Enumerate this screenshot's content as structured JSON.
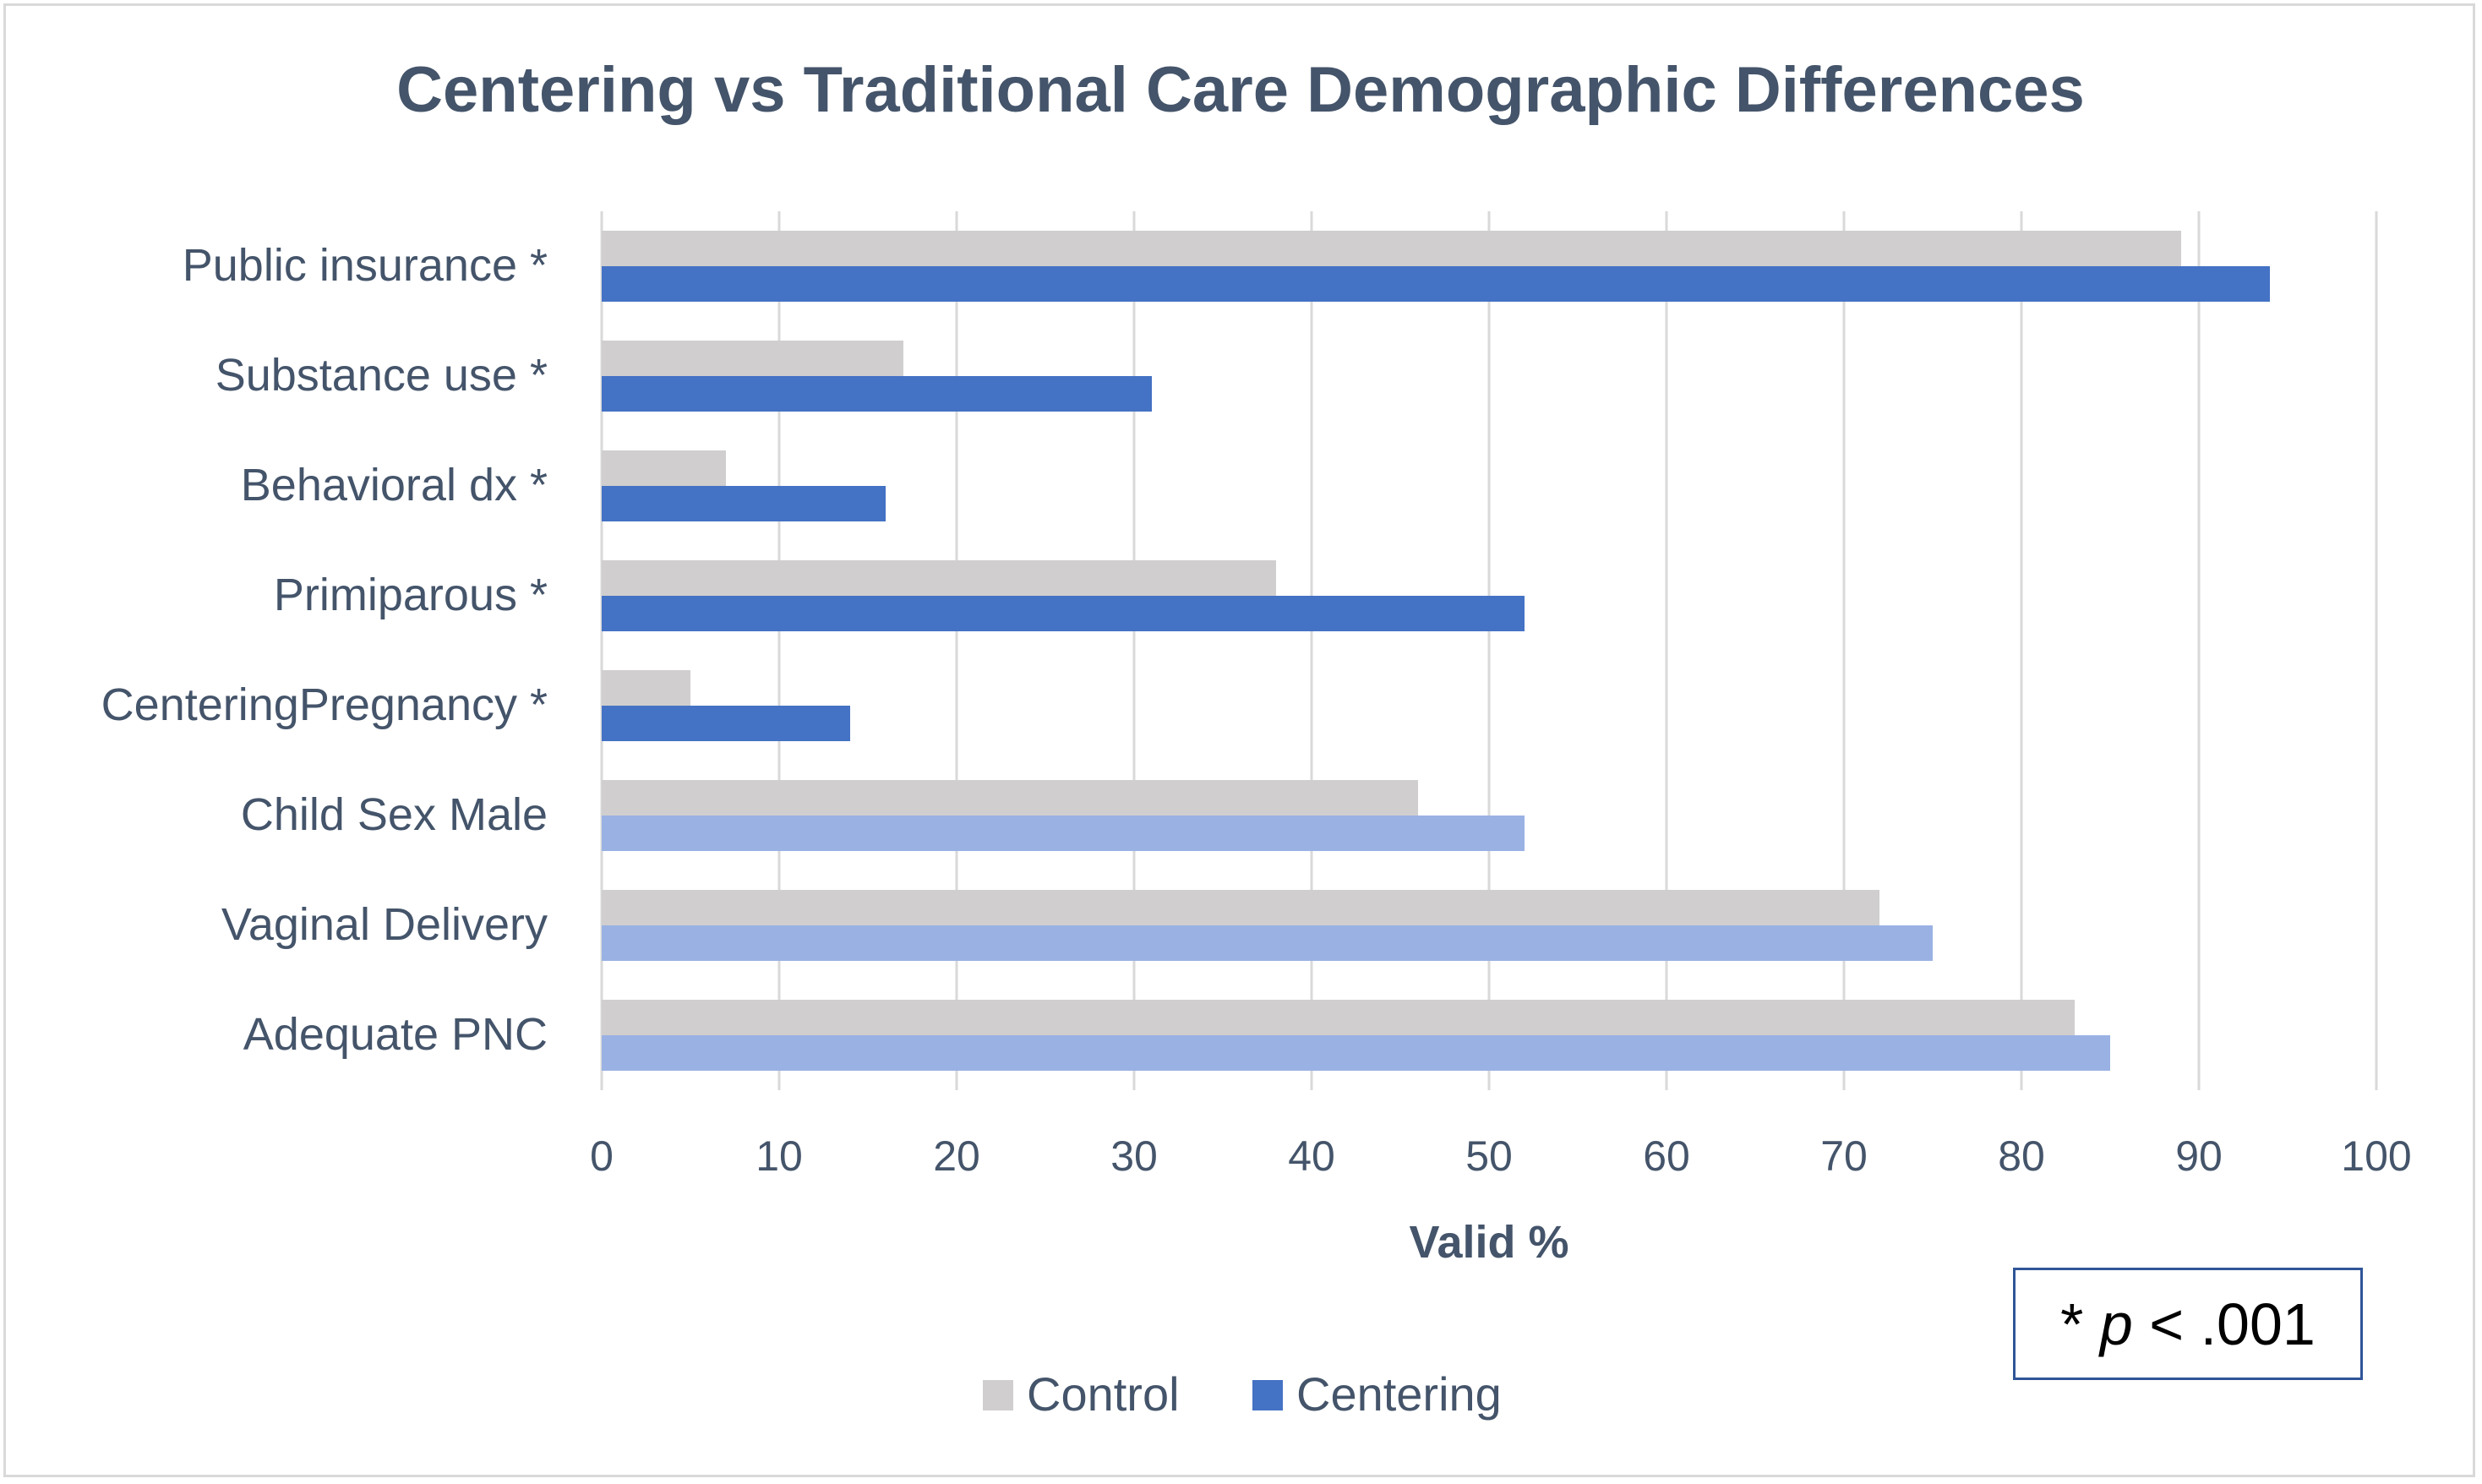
{
  "chart_data": {
    "type": "bar",
    "orientation": "horizontal",
    "title": "Centering vs Traditional Care Demographic Differences",
    "xlabel": "Valid %",
    "ylabel": "",
    "xlim": [
      0,
      100
    ],
    "x_ticks": [
      0,
      10,
      20,
      30,
      40,
      50,
      60,
      70,
      80,
      90,
      100
    ],
    "grid": true,
    "legend_position": "bottom",
    "categories": [
      "Public insurance *",
      "Substance use *",
      "Behavioral dx *",
      "Primiparous *",
      "CenteringPregnancy *",
      "Child Sex Male",
      "Vaginal Delivery",
      "Adequate PNC"
    ],
    "significant": [
      true,
      true,
      true,
      true,
      true,
      false,
      false,
      false
    ],
    "series": [
      {
        "name": "Control",
        "values": [
          89,
          17,
          7,
          38,
          5,
          46,
          72,
          83
        ],
        "color": "#d0cece"
      },
      {
        "name": "Centering",
        "values": [
          94,
          31,
          16,
          52,
          14,
          52,
          75,
          85
        ],
        "color": "#4472c4",
        "color_nonsignificant": "#9ab1e4"
      }
    ],
    "annotation": {
      "prefix": "* ",
      "italic": "p",
      "suffix": " < .001"
    }
  },
  "colors": {
    "title": "#44546a",
    "label": "#44546a",
    "grid": "#d9d9d9",
    "note_border": "#2f5597"
  }
}
